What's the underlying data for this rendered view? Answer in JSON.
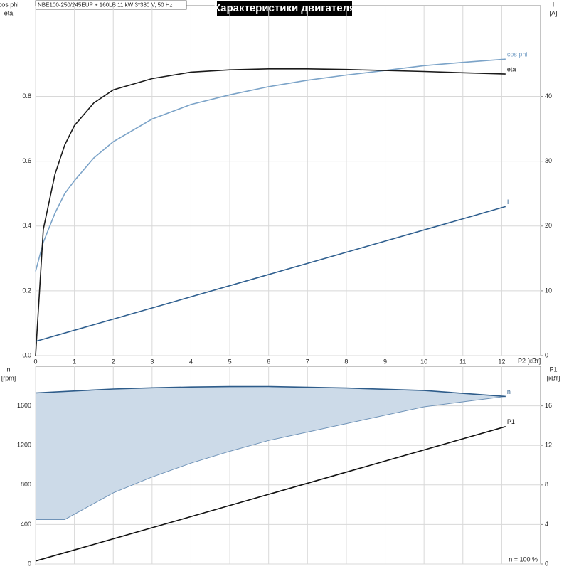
{
  "header": "NBE100-250/245EUP + 160LB   11 kW   3*380 V, 50 Hz",
  "title": "Характеристики двигателя",
  "chart_data": [
    {
      "type": "line",
      "xlabel": "P2 [кВт]",
      "ylabel": [
        "cos phi",
        "eta"
      ],
      "y2label": [
        "I",
        "[A]"
      ],
      "xlim": [
        0,
        13
      ],
      "xticks": [
        0,
        1,
        2,
        3,
        4,
        5,
        6,
        7,
        8,
        9,
        10,
        11,
        12
      ],
      "ylim": [
        0,
        1.08
      ],
      "yticks": [
        {
          "value": 0,
          "label": "0.0"
        },
        0.2,
        0.4,
        0.6,
        0.8
      ],
      "y2lim": [
        0,
        54
      ],
      "y2ticks": [
        0,
        10,
        20,
        30,
        40
      ],
      "grid": true,
      "series": [
        {
          "name": "cos phi",
          "color": "#7ba3c8",
          "x": [
            0,
            0.2,
            0.5,
            0.75,
            1,
            1.5,
            2,
            3,
            4,
            5,
            6,
            7,
            8,
            9,
            10,
            11,
            12.1
          ],
          "values": [
            0.26,
            0.35,
            0.44,
            0.5,
            0.54,
            0.61,
            0.66,
            0.73,
            0.775,
            0.805,
            0.83,
            0.85,
            0.866,
            0.88,
            0.895,
            0.905,
            0.915
          ]
        },
        {
          "name": "eta",
          "color": "#1a1a1a",
          "x": [
            0,
            0.2,
            0.5,
            0.75,
            1,
            1.5,
            2,
            3,
            4,
            5,
            6,
            7,
            8,
            9,
            10,
            11,
            12.1
          ],
          "values": [
            0,
            0.39,
            0.56,
            0.65,
            0.71,
            0.78,
            0.82,
            0.855,
            0.875,
            0.882,
            0.885,
            0.885,
            0.883,
            0.88,
            0.877,
            0.873,
            0.869
          ]
        },
        {
          "name": "I",
          "color": "#2f5f8f",
          "axis": "y2",
          "x": [
            0,
            12.1
          ],
          "values": [
            2.2,
            23
          ]
        }
      ]
    },
    {
      "type": "line",
      "ylabel": [
        "n",
        "[rpm]"
      ],
      "y2label": [
        "P1",
        "[кВт]"
      ],
      "annotation": "n = 100 %",
      "xlim": [
        0,
        13
      ],
      "ylim": [
        0,
        2000
      ],
      "yticks": [
        0,
        400,
        800,
        1200,
        1600
      ],
      "y2lim": [
        0,
        20
      ],
      "y2ticks": [
        0,
        4,
        8,
        12,
        16
      ],
      "grid": true,
      "series": [
        {
          "name": "n",
          "color": "#2e5c8a",
          "fill": "#ccdae8",
          "x": [
            0,
            0.75,
            2,
            3,
            4,
            5,
            6,
            8,
            10,
            12.1
          ],
          "values": [
            1730,
            1745,
            1770,
            1782,
            1790,
            1794,
            1795,
            1780,
            1755,
            1695
          ],
          "lower_values": [
            450,
            450,
            720,
            880,
            1020,
            1140,
            1250,
            1420,
            1590,
            1695
          ]
        },
        {
          "name": "P1",
          "color": "#111111",
          "axis": "y2",
          "x": [
            0,
            12.1
          ],
          "values": [
            0.3,
            13.9
          ]
        }
      ]
    }
  ]
}
